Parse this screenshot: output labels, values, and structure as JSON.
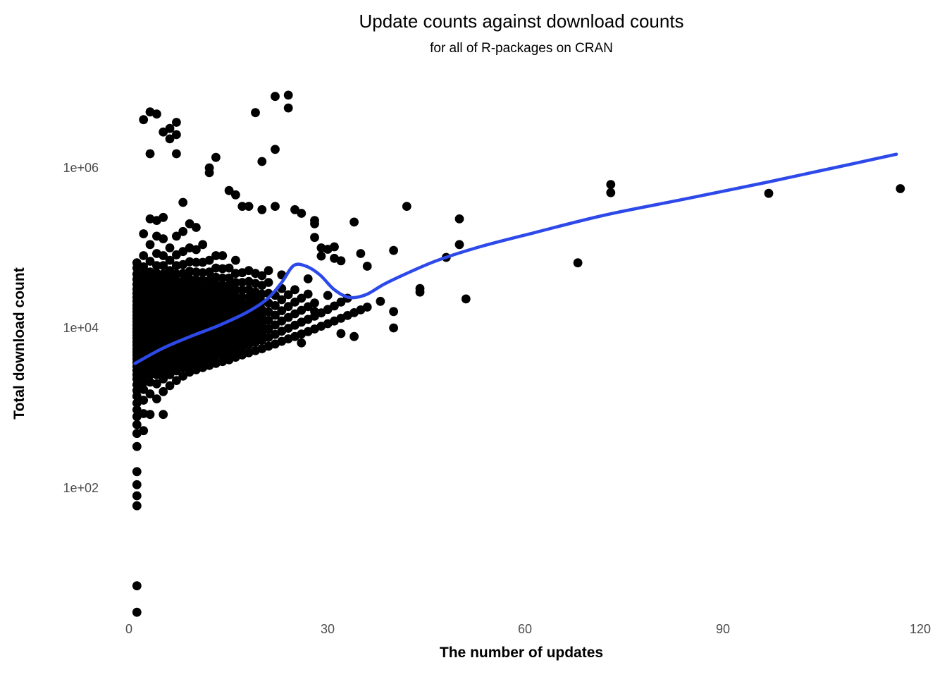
{
  "chart_data": {
    "type": "scatter",
    "title": "Update counts against download counts",
    "subtitle": "for all of R-packages on CRAN",
    "xlabel": "The number of updates",
    "ylabel": "Total download count",
    "x_axis": {
      "range": [
        0,
        120
      ],
      "tick_values": [
        0,
        30,
        60,
        90,
        120
      ],
      "tick_labels": [
        "0",
        "30",
        "60",
        "90",
        "120"
      ]
    },
    "y_axis": {
      "scale": "log10",
      "range": [
        2,
        10000000
      ],
      "tick_values": [
        100,
        10000,
        1000000
      ],
      "tick_labels": [
        "1e+02",
        "1e+04",
        "1e+06"
      ]
    },
    "grid": "none",
    "legend": "none",
    "point_color": "#000000",
    "smooth_line_color": "#2E49E9",
    "series_points": [
      {
        "updates": 1,
        "downloads": [
          2.8,
          6,
          60,
          80,
          110,
          160,
          330,
          480,
          620,
          780,
          950,
          1150,
          1400,
          1650,
          1950,
          2300,
          2600,
          2950,
          3300,
          3700,
          4100,
          4550,
          5000,
          5500,
          6100,
          6700,
          7400,
          8100,
          8900,
          9800,
          10800,
          11900,
          13100,
          14400,
          15900,
          17500,
          19300,
          21500,
          24000,
          27000,
          30500,
          35000,
          40500,
          47000,
          56000,
          65000
        ]
      },
      {
        "updates": 2,
        "downloads": [
          520,
          850,
          1250,
          1700,
          2100,
          2500,
          2900,
          3300,
          3700,
          4100,
          4500,
          5000,
          5500,
          6000,
          6600,
          7200,
          7900,
          8700,
          9500,
          10400,
          11400,
          12500,
          13700,
          15000,
          16500,
          18100,
          20000,
          22000,
          24500,
          27500,
          31000,
          35000,
          40000,
          47000,
          58000,
          80000,
          150000,
          4000000
        ]
      },
      {
        "updates": 3,
        "downloads": [
          830,
          1500,
          2100,
          2600,
          3000,
          3400,
          3800,
          4200,
          4700,
          5200,
          5700,
          6300,
          6900,
          7600,
          8300,
          9100,
          10000,
          11000,
          12100,
          13300,
          14600,
          16000,
          17600,
          19400,
          21500,
          24000,
          27000,
          30500,
          35000,
          41000,
          50000,
          68000,
          110000,
          230000,
          1500000,
          5000000
        ]
      },
      {
        "updates": 4,
        "downloads": [
          1300,
          2000,
          2600,
          3100,
          3600,
          4000,
          4400,
          4900,
          5400,
          5900,
          6500,
          7200,
          7900,
          8700,
          9600,
          10600,
          11700,
          12900,
          14200,
          15600,
          17200,
          19000,
          21000,
          23500,
          26500,
          30000,
          34500,
          40000,
          48000,
          60000,
          85000,
          140000,
          220000,
          4700000
        ]
      },
      {
        "updates": 5,
        "downloads": [
          830,
          1600,
          2300,
          2900,
          3400,
          3900,
          4400,
          4900,
          5400,
          6000,
          6600,
          7300,
          8000,
          8800,
          9700,
          10700,
          11800,
          13000,
          14300,
          15800,
          17500,
          19500,
          22000,
          25000,
          28500,
          33000,
          39000,
          47000,
          60000,
          80000,
          130000,
          240000,
          2800000
        ]
      },
      {
        "updates": 6,
        "downloads": [
          1900,
          2600,
          3200,
          3700,
          4200,
          4700,
          5200,
          5800,
          6400,
          7000,
          7700,
          8500,
          9300,
          10200,
          11200,
          12300,
          13600,
          15000,
          16600,
          18400,
          20500,
          23000,
          26000,
          30000,
          35000,
          42000,
          52000,
          70000,
          100000,
          2300000,
          3100000
        ]
      },
      {
        "updates": 7,
        "downloads": [
          2200,
          2900,
          3500,
          4000,
          4500,
          5100,
          5700,
          6300,
          7000,
          7700,
          8500,
          9400,
          10400,
          11500,
          12700,
          14000,
          15500,
          17200,
          19200,
          21500,
          24500,
          28000,
          32500,
          38500,
          47000,
          60000,
          82000,
          140000,
          1500000,
          2600000,
          3700000
        ]
      },
      {
        "updates": 8,
        "downloads": [
          2500,
          3200,
          3800,
          4300,
          4900,
          5500,
          6100,
          6800,
          7500,
          8300,
          9200,
          10200,
          11300,
          12500,
          13900,
          15400,
          17100,
          19000,
          21500,
          24500,
          28000,
          33000,
          39000,
          48000,
          62000,
          90000,
          160000,
          370000
        ]
      },
      {
        "updates": 9,
        "downloads": [
          2800,
          3500,
          4100,
          4700,
          5300,
          5900,
          6600,
          7400,
          8200,
          9100,
          10100,
          11200,
          12500,
          13900,
          15500,
          17300,
          19500,
          22000,
          25000,
          29000,
          34000,
          41000,
          51000,
          67000,
          100000,
          200000
        ]
      },
      {
        "updates": 10,
        "downloads": [
          3000,
          3700,
          4400,
          5000,
          5700,
          6400,
          7200,
          8000,
          8900,
          9900,
          11000,
          12300,
          13700,
          15300,
          17100,
          19200,
          21500,
          24500,
          28500,
          33500,
          40000,
          50000,
          66000,
          95000,
          180000
        ]
      },
      {
        "updates": 11,
        "downloads": [
          3200,
          4000,
          4700,
          5400,
          6100,
          6900,
          7800,
          8800,
          9900,
          11100,
          12500,
          14100,
          15900,
          18000,
          20500,
          23500,
          27500,
          32500,
          39000,
          49000,
          66000,
          110000
        ]
      },
      {
        "updates": 12,
        "downloads": [
          3400,
          4200,
          5000,
          5800,
          6600,
          7500,
          8500,
          9600,
          10900,
          12300,
          13900,
          15800,
          18000,
          20500,
          23500,
          27500,
          32500,
          39500,
          50000,
          70000,
          870000,
          1000000
        ]
      },
      {
        "updates": 13,
        "downloads": [
          3600,
          4500,
          5300,
          6200,
          7100,
          8100,
          9200,
          10500,
          12000,
          13700,
          15700,
          18000,
          21000,
          24500,
          29000,
          35000,
          43000,
          56000,
          80000,
          1350000
        ]
      },
      {
        "updates": 14,
        "downloads": [
          3800,
          4700,
          5600,
          6600,
          7600,
          8800,
          10100,
          11600,
          13400,
          15400,
          17800,
          20500,
          24000,
          28500,
          34000,
          42000,
          55000,
          80000
        ]
      },
      {
        "updates": 15,
        "downloads": [
          4000,
          5000,
          6000,
          7000,
          8200,
          9500,
          11000,
          12800,
          14800,
          17200,
          20000,
          23500,
          28000,
          34000,
          42000,
          56000,
          520000
        ]
      },
      {
        "updates": 16,
        "downloads": [
          4300,
          5400,
          6500,
          7700,
          9100,
          10700,
          12600,
          14800,
          17400,
          20500,
          24500,
          30000,
          37000,
          48000,
          70000,
          460000
        ]
      },
      {
        "updates": 17,
        "downloads": [
          4600,
          5800,
          7000,
          8400,
          10000,
          11900,
          14100,
          16800,
          20000,
          24000,
          29500,
          37000,
          49000,
          330000
        ]
      },
      {
        "updates": 18,
        "downloads": [
          4900,
          6200,
          7600,
          9200,
          11100,
          13400,
          16200,
          19600,
          24000,
          30000,
          38000,
          52000,
          330000
        ]
      },
      {
        "updates": 19,
        "downloads": [
          5200,
          6600,
          8200,
          10000,
          12200,
          14900,
          18200,
          22500,
          28000,
          36000,
          48000,
          4900000
        ]
      },
      {
        "updates": 20,
        "downloads": [
          5500,
          7000,
          8800,
          10900,
          13500,
          16800,
          21000,
          26500,
          34000,
          45000,
          300000,
          1200000
        ]
      },
      {
        "updates": 21,
        "downloads": [
          5900,
          7600,
          9700,
          12400,
          15900,
          20500,
          27000,
          37000,
          52000
        ]
      },
      {
        "updates": 22,
        "downloads": [
          6300,
          8300,
          10900,
          14400,
          19000,
          25500,
          330000,
          1700000,
          7800000
        ]
      },
      {
        "updates": 23,
        "downloads": [
          6800,
          9100,
          12200,
          16400,
          22500,
          31000,
          46000
        ]
      },
      {
        "updates": 24,
        "downloads": [
          7300,
          9900,
          13500,
          18500,
          26000,
          5600000,
          8100000
        ]
      },
      {
        "updates": 25,
        "downloads": [
          7800,
          10800,
          15000,
          21000,
          30000,
          300000
        ]
      },
      {
        "updates": 26,
        "downloads": [
          6500,
          8400,
          11800,
          16600,
          23500,
          270000
        ]
      },
      {
        "updates": 27,
        "downloads": [
          9000,
          12800,
          18400,
          26500,
          41000
        ]
      },
      {
        "updates": 28,
        "downloads": [
          9700,
          14000,
          16000,
          20500,
          135000,
          200000,
          220000
        ]
      },
      {
        "updates": 29,
        "downloads": [
          10500,
          15400,
          79000,
          100000
        ]
      },
      {
        "updates": 30,
        "downloads": [
          11300,
          17000,
          25500,
          96000
        ]
      },
      {
        "updates": 31,
        "downloads": [
          12200,
          18800,
          74000,
          103000
        ]
      },
      {
        "updates": 32,
        "downloads": [
          8500,
          13200,
          21000,
          69000
        ]
      },
      {
        "updates": 33,
        "downloads": [
          14300,
          23500
        ]
      },
      {
        "updates": 34,
        "downloads": [
          7800,
          15500,
          210000
        ]
      },
      {
        "updates": 35,
        "downloads": [
          16800,
          85000
        ]
      },
      {
        "updates": 36,
        "downloads": [
          18200,
          59000
        ]
      },
      {
        "updates": 38,
        "downloads": [
          21500
        ]
      },
      {
        "updates": 40,
        "downloads": [
          10000,
          16000,
          93000
        ]
      },
      {
        "updates": 42,
        "downloads": [
          330000
        ]
      },
      {
        "updates": 44,
        "downloads": [
          28000,
          31000
        ]
      },
      {
        "updates": 48,
        "downloads": [
          76000
        ]
      },
      {
        "updates": 50,
        "downloads": [
          110000,
          230000
        ]
      },
      {
        "updates": 51,
        "downloads": [
          23000
        ]
      },
      {
        "updates": 68,
        "downloads": [
          65000
        ]
      },
      {
        "updates": 73,
        "downloads": [
          490000,
          620000
        ]
      },
      {
        "updates": 97,
        "downloads": [
          480000
        ]
      },
      {
        "updates": 117,
        "downloads": [
          550000
        ]
      }
    ],
    "smooth_line": [
      [
        0.7,
        3600
      ],
      [
        4.8,
        5500
      ],
      [
        9.1,
        7800
      ],
      [
        13.4,
        10700
      ],
      [
        17.6,
        15500
      ],
      [
        20.8,
        23000
      ],
      [
        23.0,
        37000
      ],
      [
        24.8,
        60000
      ],
      [
        26.7,
        59000
      ],
      [
        28.8,
        46000
      ],
      [
        31.0,
        30000
      ],
      [
        33.3,
        24000
      ],
      [
        35.8,
        26000
      ],
      [
        38.5,
        35000
      ],
      [
        41.5,
        46000
      ],
      [
        46.5,
        69000
      ],
      [
        52.9,
        102000
      ],
      [
        61.4,
        155000
      ],
      [
        72.1,
        257000
      ],
      [
        84.2,
        407000
      ],
      [
        96.7,
        660000
      ],
      [
        107.4,
        1020000
      ],
      [
        116.4,
        1480000
      ]
    ]
  }
}
